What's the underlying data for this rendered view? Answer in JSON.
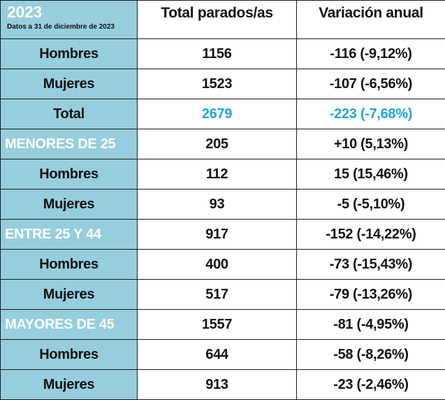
{
  "header": {
    "year": "2023",
    "date_note": "Datos a 31 de diciembre de 2023",
    "col_total": "Total parados/as",
    "col_variation": "Variación anual"
  },
  "rows": [
    {
      "label": "Hombres",
      "total": "1156",
      "variation": "-116 (-9,12%)",
      "kind": "sub"
    },
    {
      "label": "Mujeres",
      "total": "1523",
      "variation": "-107 (-6,56%)",
      "kind": "sub"
    },
    {
      "label": "Total",
      "total": "2679",
      "variation": "-223 (-7,68%)",
      "kind": "total"
    },
    {
      "label": "MENORES DE 25",
      "total": "205",
      "variation": "+10 (5,13%)",
      "kind": "group"
    },
    {
      "label": "Hombres",
      "total": "112",
      "variation": "15 (15,46%)",
      "kind": "sub"
    },
    {
      "label": "Mujeres",
      "total": "93",
      "variation": "-5 (-5,10%)",
      "kind": "sub"
    },
    {
      "label": "ENTRE 25 Y 44",
      "total": "917",
      "variation": "-152 (-14,22%)",
      "kind": "group"
    },
    {
      "label": "Hombres",
      "total": "400",
      "variation": "-73 (-15,43%)",
      "kind": "sub"
    },
    {
      "label": "Mujeres",
      "total": "517",
      "variation": "-79 (-13,26%)",
      "kind": "sub"
    },
    {
      "label": "MAYORES DE 45",
      "total": "1557",
      "variation": "-81 (-4,95%)",
      "kind": "group"
    },
    {
      "label": "Hombres",
      "total": "644",
      "variation": "-58 (-8,26%)",
      "kind": "sub"
    },
    {
      "label": "Mujeres",
      "total": "913",
      "variation": "-23 (-2,46%)",
      "kind": "sub"
    }
  ],
  "colors": {
    "label_background": "#96cedd",
    "highlight_text": "#1ea6de",
    "group_label_text": "#ffffff"
  }
}
